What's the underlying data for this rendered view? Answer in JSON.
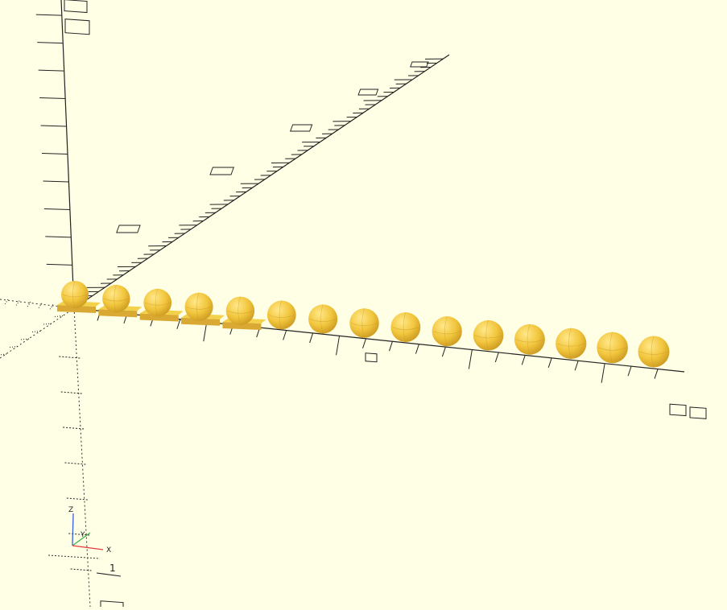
{
  "viewport": {
    "background": "#ffffe5",
    "object_color": "#f4d14a",
    "object_shade": "#d9a933",
    "axis_color": "#222222",
    "object_count": 15,
    "pedestal_count": 5
  },
  "axes_gizmo": {
    "z_label": "Z",
    "y_label": "Y",
    "x_label": "X",
    "x_color": "#e33a3a",
    "y_color": "#37b24d",
    "z_color": "#3b5bdb"
  },
  "scale_marker": {
    "label": "1"
  }
}
